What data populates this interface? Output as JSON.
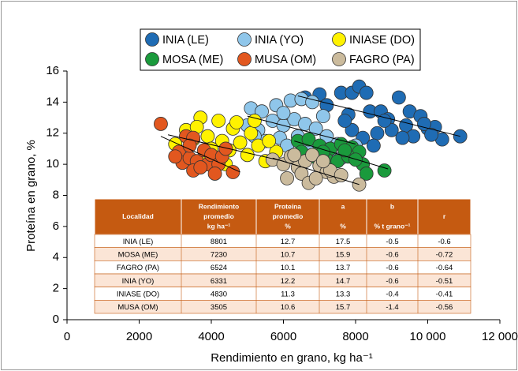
{
  "chart_data": {
    "type": "scatter",
    "xlabel": "Rendimiento en grano, kg ha⁻¹",
    "ylabel": "Proteína en grano, %",
    "xlim": [
      0,
      12000
    ],
    "ylim": [
      0,
      16
    ],
    "xticks": [
      0,
      2000,
      4000,
      6000,
      8000,
      {
        "value": 10000,
        "label": "10 000"
      },
      {
        "value": 12000,
        "label": "12 000"
      }
    ],
    "yticks": [
      0,
      2,
      4,
      6,
      8,
      10,
      12,
      14,
      16
    ],
    "grid": false,
    "series": [
      {
        "name": "INIA (LE)",
        "color": "#1f6cb4",
        "x": [
          6600,
          7000,
          7200,
          7600,
          7900,
          7800,
          8100,
          8300,
          8400,
          8700,
          8900,
          9200,
          9500,
          9800,
          10000,
          10200,
          9000,
          9400,
          8600,
          8200,
          7900,
          9600,
          10400,
          10900,
          8800,
          9300,
          9900,
          7700,
          10100,
          8500
        ],
        "values": [
          14.3,
          14.5,
          13.8,
          14.6,
          14.6,
          13.2,
          15,
          14.6,
          13.4,
          13.4,
          12.9,
          14.3,
          13.4,
          13.1,
          12.3,
          12.4,
          12.2,
          12.5,
          12,
          11.7,
          12.2,
          11.8,
          11.6,
          11.8,
          12.8,
          11.7,
          12.6,
          12.8,
          11.9,
          11.2
        ],
        "trend": {
          "x": [
            6400,
            10900
          ],
          "y": [
            14.4,
            11.8
          ]
        }
      },
      {
        "name": "INIA (YO)",
        "color": "#8fc6ea",
        "x": [
          5100,
          5400,
          5800,
          6200,
          6500,
          6800,
          5000,
          5300,
          5700,
          6000,
          6300,
          6600,
          6900,
          7200,
          7500,
          7800,
          5500,
          5900,
          6100,
          6400,
          6700,
          7000,
          7300,
          7600,
          7100,
          6000,
          5200,
          8000
        ],
        "values": [
          13.6,
          13.4,
          13.8,
          14.1,
          14.2,
          14,
          12.5,
          12.2,
          12.8,
          12.5,
          12.9,
          12.6,
          12.3,
          11.8,
          11.3,
          11,
          11.5,
          11.7,
          11.2,
          11.8,
          11.1,
          10.8,
          10.6,
          10.4,
          13.1,
          13.3,
          11.8,
          11.2
        ],
        "trend": {
          "x": [
            5000,
            8000
          ],
          "y": [
            13.1,
            11.3
          ]
        }
      },
      {
        "name": "INIASE (DO)",
        "color": "#fff200",
        "x": [
          3300,
          3700,
          4200,
          4600,
          5100,
          3500,
          3900,
          4300,
          4800,
          5300,
          5800,
          4000,
          4500,
          5000,
          5500,
          3800,
          4400,
          3000,
          4700,
          5200,
          5600,
          3600
        ],
        "values": [
          12.2,
          13,
          12.8,
          12.3,
          12,
          11.6,
          11.8,
          11.5,
          11.4,
          11.2,
          10.8,
          11,
          10.9,
          10.6,
          10.2,
          10.4,
          10,
          11.3,
          12.7,
          12.8,
          11.5,
          12.4
        ],
        "trend": {
          "x": [
            2800,
            6000
          ],
          "y": [
            11.9,
            10.2
          ]
        }
      },
      {
        "name": "MOSA (ME)",
        "color": "#1a9a3c",
        "x": [
          6400,
          6700,
          7000,
          7300,
          7600,
          7900,
          8100,
          6800,
          7200,
          7500,
          7800,
          8200,
          8300,
          8800,
          6500,
          7100,
          7700,
          8000
        ],
        "values": [
          11.5,
          11.6,
          11.2,
          11,
          11.3,
          11.1,
          10.8,
          10.5,
          10.3,
          10.2,
          10.5,
          10,
          9.4,
          9.6,
          10.8,
          10.8,
          10.9,
          10.3
        ],
        "trend": {
          "x": [
            6300,
            8900
          ],
          "y": [
            11.5,
            9.7
          ]
        }
      },
      {
        "name": "MUSA (OM)",
        "color": "#e2571f",
        "x": [
          2600,
          3100,
          3300,
          3500,
          3200,
          3400,
          3600,
          3800,
          3900,
          4000,
          4200,
          3500,
          3700,
          4100,
          4300,
          4600,
          3000,
          3400,
          4400
        ],
        "values": [
          12.6,
          10.8,
          11.8,
          11.7,
          10.1,
          10.4,
          10.2,
          10.9,
          10,
          10.6,
          10,
          9.6,
          9.8,
          9.4,
          10.5,
          9.5,
          10.5,
          11.2,
          11
        ],
        "trend": {
          "x": [
            2600,
            4800
          ],
          "y": [
            11.8,
            9.5
          ]
        }
      },
      {
        "name": "FAGRO (PA)",
        "color": "#cbbb9d",
        "x": [
          5700,
          6000,
          6200,
          6400,
          6600,
          6800,
          7000,
          7200,
          7400,
          6100,
          6500,
          6700,
          6900,
          7300,
          7600,
          8100,
          6300,
          7100
        ],
        "values": [
          10.3,
          10,
          10.5,
          9.8,
          10.2,
          10.6,
          9.9,
          9.5,
          9.2,
          9.1,
          9.4,
          8.8,
          9.1,
          9.6,
          9.3,
          8.7,
          10.6,
          10.2
        ],
        "trend": {
          "x": [
            5700,
            8100
          ],
          "y": [
            10.4,
            8.7
          ]
        }
      }
    ],
    "table": {
      "header": [
        [
          "Localidad"
        ],
        [
          "Rendimiento",
          "promedio",
          "kg ha⁻¹"
        ],
        [
          "Proteína",
          "promedio",
          "%"
        ],
        [
          "a",
          "%"
        ],
        [
          "b",
          "% t grano⁻¹"
        ],
        [
          "r"
        ]
      ],
      "rows": [
        [
          "INIA (LE)",
          8801,
          12.7,
          17.5,
          -0.5,
          -0.6
        ],
        [
          "MOSA (ME)",
          7230,
          10.7,
          15.9,
          -0.6,
          -0.72
        ],
        [
          "FAGRO (PA)",
          6524,
          10.1,
          13.7,
          -0.6,
          -0.64
        ],
        [
          "INIA (YO)",
          6331,
          12.2,
          14.7,
          -0.6,
          -0.51
        ],
        [
          "INIASE (DO)",
          4830,
          11.3,
          13.3,
          -0.4,
          -0.41
        ],
        [
          "MUSA (OM)",
          3505,
          10.6,
          15.7,
          -1.4,
          -0.56
        ]
      ]
    }
  }
}
